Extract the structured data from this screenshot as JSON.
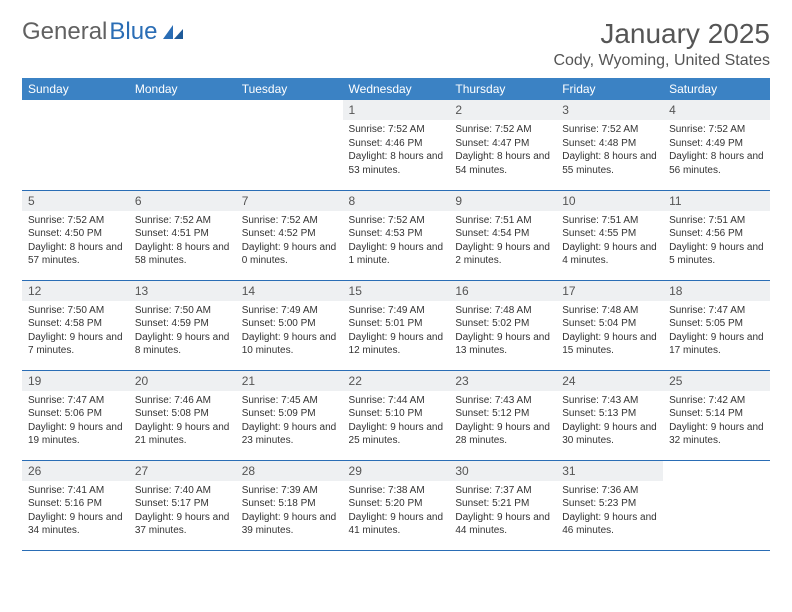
{
  "logo": {
    "text1": "General",
    "text2": "Blue"
  },
  "title": "January 2025",
  "location": "Cody, Wyoming, United States",
  "colors": {
    "header_bg": "#3b82c4",
    "header_text": "#ffffff",
    "daynum_bg": "#eef0f2",
    "border": "#2a6db5",
    "logo_gray": "#616161",
    "logo_blue": "#2a6db5"
  },
  "weekdays": [
    "Sunday",
    "Monday",
    "Tuesday",
    "Wednesday",
    "Thursday",
    "Friday",
    "Saturday"
  ],
  "weeks": [
    [
      {
        "empty": true
      },
      {
        "empty": true
      },
      {
        "empty": true
      },
      {
        "n": "1",
        "sr": "7:52 AM",
        "ss": "4:46 PM",
        "dl": "8 hours and 53 minutes."
      },
      {
        "n": "2",
        "sr": "7:52 AM",
        "ss": "4:47 PM",
        "dl": "8 hours and 54 minutes."
      },
      {
        "n": "3",
        "sr": "7:52 AM",
        "ss": "4:48 PM",
        "dl": "8 hours and 55 minutes."
      },
      {
        "n": "4",
        "sr": "7:52 AM",
        "ss": "4:49 PM",
        "dl": "8 hours and 56 minutes."
      }
    ],
    [
      {
        "n": "5",
        "sr": "7:52 AM",
        "ss": "4:50 PM",
        "dl": "8 hours and 57 minutes."
      },
      {
        "n": "6",
        "sr": "7:52 AM",
        "ss": "4:51 PM",
        "dl": "8 hours and 58 minutes."
      },
      {
        "n": "7",
        "sr": "7:52 AM",
        "ss": "4:52 PM",
        "dl": "9 hours and 0 minutes."
      },
      {
        "n": "8",
        "sr": "7:52 AM",
        "ss": "4:53 PM",
        "dl": "9 hours and 1 minute."
      },
      {
        "n": "9",
        "sr": "7:51 AM",
        "ss": "4:54 PM",
        "dl": "9 hours and 2 minutes."
      },
      {
        "n": "10",
        "sr": "7:51 AM",
        "ss": "4:55 PM",
        "dl": "9 hours and 4 minutes."
      },
      {
        "n": "11",
        "sr": "7:51 AM",
        "ss": "4:56 PM",
        "dl": "9 hours and 5 minutes."
      }
    ],
    [
      {
        "n": "12",
        "sr": "7:50 AM",
        "ss": "4:58 PM",
        "dl": "9 hours and 7 minutes."
      },
      {
        "n": "13",
        "sr": "7:50 AM",
        "ss": "4:59 PM",
        "dl": "9 hours and 8 minutes."
      },
      {
        "n": "14",
        "sr": "7:49 AM",
        "ss": "5:00 PM",
        "dl": "9 hours and 10 minutes."
      },
      {
        "n": "15",
        "sr": "7:49 AM",
        "ss": "5:01 PM",
        "dl": "9 hours and 12 minutes."
      },
      {
        "n": "16",
        "sr": "7:48 AM",
        "ss": "5:02 PM",
        "dl": "9 hours and 13 minutes."
      },
      {
        "n": "17",
        "sr": "7:48 AM",
        "ss": "5:04 PM",
        "dl": "9 hours and 15 minutes."
      },
      {
        "n": "18",
        "sr": "7:47 AM",
        "ss": "5:05 PM",
        "dl": "9 hours and 17 minutes."
      }
    ],
    [
      {
        "n": "19",
        "sr": "7:47 AM",
        "ss": "5:06 PM",
        "dl": "9 hours and 19 minutes."
      },
      {
        "n": "20",
        "sr": "7:46 AM",
        "ss": "5:08 PM",
        "dl": "9 hours and 21 minutes."
      },
      {
        "n": "21",
        "sr": "7:45 AM",
        "ss": "5:09 PM",
        "dl": "9 hours and 23 minutes."
      },
      {
        "n": "22",
        "sr": "7:44 AM",
        "ss": "5:10 PM",
        "dl": "9 hours and 25 minutes."
      },
      {
        "n": "23",
        "sr": "7:43 AM",
        "ss": "5:12 PM",
        "dl": "9 hours and 28 minutes."
      },
      {
        "n": "24",
        "sr": "7:43 AM",
        "ss": "5:13 PM",
        "dl": "9 hours and 30 minutes."
      },
      {
        "n": "25",
        "sr": "7:42 AM",
        "ss": "5:14 PM",
        "dl": "9 hours and 32 minutes."
      }
    ],
    [
      {
        "n": "26",
        "sr": "7:41 AM",
        "ss": "5:16 PM",
        "dl": "9 hours and 34 minutes."
      },
      {
        "n": "27",
        "sr": "7:40 AM",
        "ss": "5:17 PM",
        "dl": "9 hours and 37 minutes."
      },
      {
        "n": "28",
        "sr": "7:39 AM",
        "ss": "5:18 PM",
        "dl": "9 hours and 39 minutes."
      },
      {
        "n": "29",
        "sr": "7:38 AM",
        "ss": "5:20 PM",
        "dl": "9 hours and 41 minutes."
      },
      {
        "n": "30",
        "sr": "7:37 AM",
        "ss": "5:21 PM",
        "dl": "9 hours and 44 minutes."
      },
      {
        "n": "31",
        "sr": "7:36 AM",
        "ss": "5:23 PM",
        "dl": "9 hours and 46 minutes."
      },
      {
        "empty": true
      }
    ]
  ]
}
